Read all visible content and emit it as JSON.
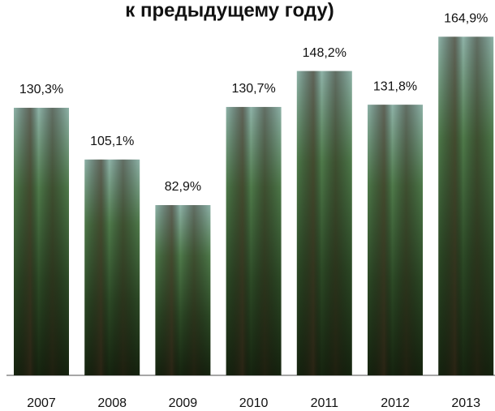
{
  "chart_data": {
    "type": "bar",
    "title": "к предыдущему году)",
    "categories": [
      "2007",
      "2008",
      "2009",
      "2010",
      "2011",
      "2012",
      "2013"
    ],
    "values": [
      130.3,
      105.1,
      82.9,
      130.7,
      148.2,
      131.8,
      164.9
    ],
    "value_labels": [
      "130,3%",
      "105,1%",
      "82,9%",
      "130,7%",
      "148,2%",
      "131,8%",
      "164,9%"
    ]
  }
}
